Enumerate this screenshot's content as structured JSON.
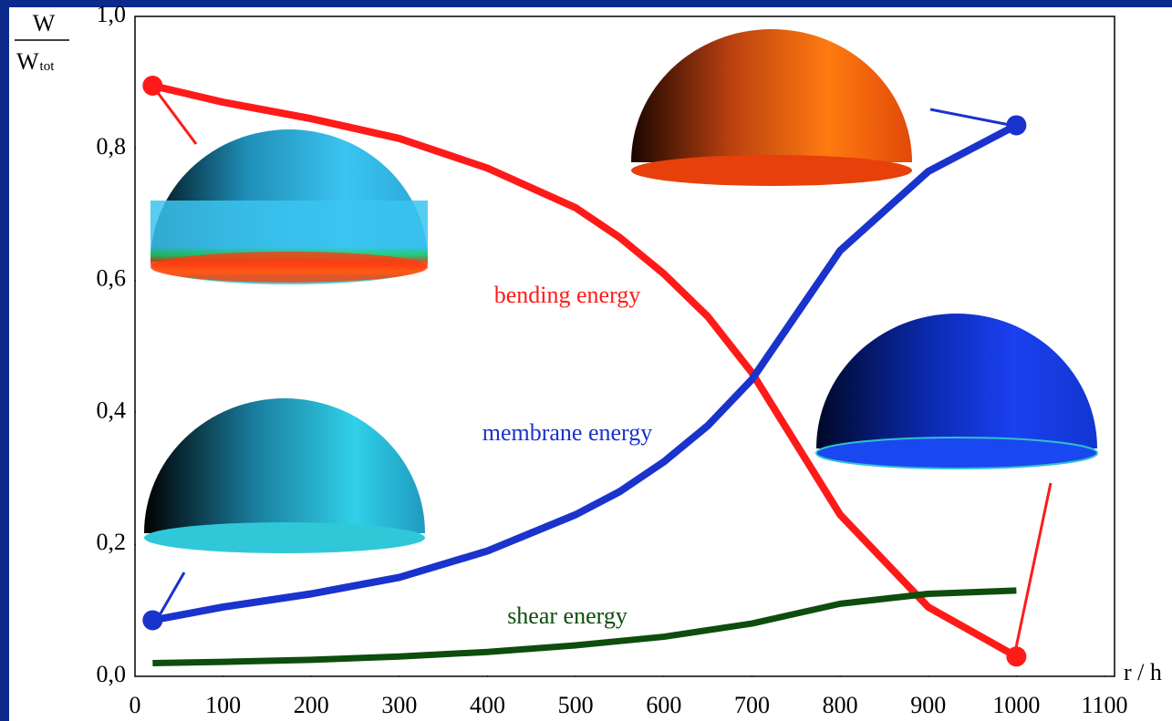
{
  "chart_data": {
    "type": "line",
    "y_label": {
      "numerator": "W",
      "denominator": "W",
      "subscript": "tot"
    },
    "x_label": "r / h",
    "xlim": [
      0,
      1100
    ],
    "xticks": [
      0,
      100,
      200,
      300,
      400,
      500,
      600,
      700,
      800,
      900,
      1000,
      1100
    ],
    "ylim": [
      0,
      1
    ],
    "yticks": [
      {
        "value": 0,
        "label": "0,0"
      },
      {
        "value": 0.2,
        "label": "0,2"
      },
      {
        "value": 0.4,
        "label": "0,4"
      },
      {
        "value": 0.6,
        "label": "0,6"
      },
      {
        "value": 0.8,
        "label": "0,8"
      },
      {
        "value": 1,
        "label": "1,0"
      }
    ],
    "grid": false,
    "series": [
      {
        "name": "bending energy",
        "color": "#ff1a1a",
        "end_markers": true,
        "x": [
          20,
          100,
          200,
          300,
          400,
          500,
          550,
          600,
          650,
          700,
          800,
          900,
          1000
        ],
        "values": [
          0.895,
          0.87,
          0.845,
          0.815,
          0.77,
          0.71,
          0.665,
          0.61,
          0.545,
          0.46,
          0.245,
          0.105,
          0.03
        ]
      },
      {
        "name": "membrane energy",
        "color": "#1a33cc",
        "end_markers": true,
        "x": [
          20,
          100,
          200,
          300,
          400,
          500,
          550,
          600,
          650,
          700,
          800,
          900,
          1000
        ],
        "values": [
          0.085,
          0.105,
          0.125,
          0.15,
          0.19,
          0.245,
          0.28,
          0.325,
          0.38,
          0.45,
          0.645,
          0.765,
          0.835
        ]
      },
      {
        "name": "shear energy",
        "color": "#0d4d0d",
        "end_markers": false,
        "x": [
          20,
          100,
          200,
          300,
          400,
          500,
          600,
          700,
          800,
          900,
          1000
        ],
        "values": [
          0.02,
          0.022,
          0.025,
          0.03,
          0.037,
          0.047,
          0.06,
          0.08,
          0.11,
          0.125,
          0.13
        ]
      }
    ]
  }
}
